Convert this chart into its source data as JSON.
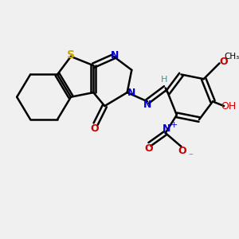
{
  "bg_color": "#f0f0f0",
  "bond_color": "#000000",
  "bond_width": 1.8,
  "S_color": "#ccaa00",
  "N_color": "#0000cc",
  "O_color": "#cc0000",
  "H_color": "#4a9090",
  "figsize": [
    3.0,
    3.0
  ],
  "dpi": 100,
  "xlim": [
    0,
    10
  ],
  "ylim": [
    0,
    10
  ]
}
